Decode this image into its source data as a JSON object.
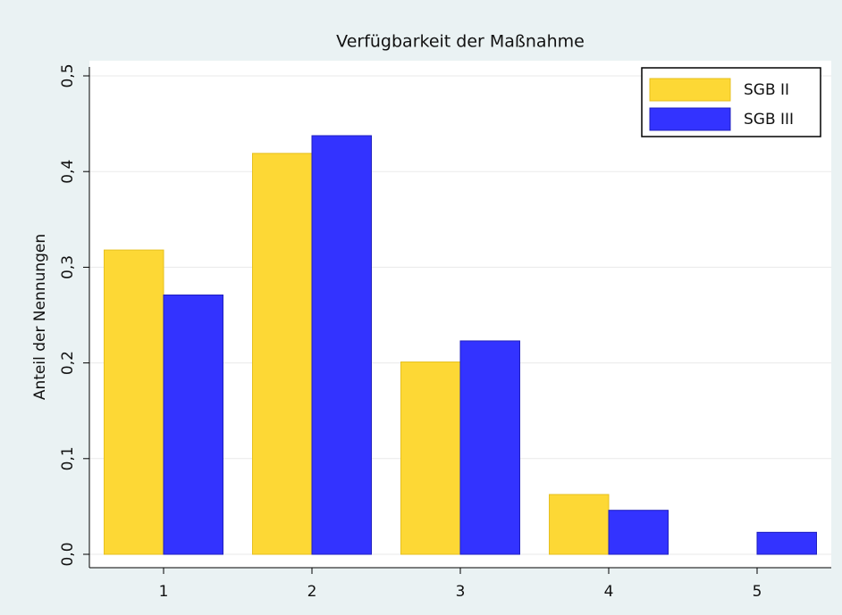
{
  "chart_data": {
    "type": "bar",
    "title": "Verfügbarkeit der Maßnahme",
    "y_label": "Anteil der Nennungen",
    "categories": [
      "1",
      "2",
      "3",
      "4",
      "5"
    ],
    "series": [
      {
        "name": "SGB II",
        "color": "#fdd835",
        "values": [
          0.318,
          0.419,
          0.201,
          0.0625,
          0
        ]
      },
      {
        "name": "SGB III",
        "color": "#3333ff",
        "values": [
          0.271,
          0.4375,
          0.223,
          0.046,
          0.023
        ]
      }
    ],
    "ylim": [
      0,
      0.5
    ],
    "yticks": [
      {
        "value": 0,
        "label": "0,0"
      },
      {
        "value": 0.1,
        "label": "0,1"
      },
      {
        "value": 0.2,
        "label": "0,2"
      },
      {
        "value": 0.3,
        "label": "0,3"
      },
      {
        "value": 0.4,
        "label": "0,4"
      },
      {
        "value": 0.5,
        "label": "0,5"
      }
    ],
    "grid": true,
    "legend": "top-right"
  }
}
